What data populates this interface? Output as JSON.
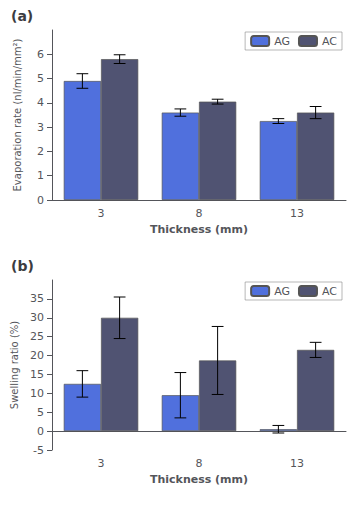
{
  "chart_data": [
    {
      "type": "bar",
      "title": "(a)",
      "categories": [
        "3",
        "8",
        "13"
      ],
      "series": [
        {
          "name": "AG",
          "values": [
            4.9,
            3.6,
            3.25
          ],
          "errors": [
            0.3,
            0.15,
            0.1
          ]
        },
        {
          "name": "AC",
          "values": [
            5.8,
            4.05,
            3.6
          ],
          "errors": [
            0.18,
            0.1,
            0.25
          ]
        }
      ],
      "xlabel": "Thickness (mm)",
      "ylabel": "Evaporation rate (nl/min/mm²)",
      "ylim": [
        0,
        7
      ],
      "yticks": [
        0,
        1,
        2,
        3,
        4,
        5,
        6
      ],
      "grid": false,
      "legend": "upper right"
    },
    {
      "type": "bar",
      "title": "(b)",
      "categories": [
        "3",
        "8",
        "13"
      ],
      "series": [
        {
          "name": "AG",
          "values": [
            12.5,
            9.5,
            0.5
          ],
          "errors": [
            3.5,
            6.0,
            1.0
          ]
        },
        {
          "name": "AC",
          "values": [
            30.0,
            18.7,
            21.5
          ],
          "errors": [
            5.5,
            9.0,
            2.0
          ]
        }
      ],
      "xlabel": "Thickness (mm)",
      "ylabel": "Swelling ratio (%)",
      "ylim": [
        -5,
        40
      ],
      "yticks": [
        -5,
        0,
        5,
        10,
        15,
        20,
        25,
        30,
        35
      ],
      "grid": false,
      "legend": "upper right"
    }
  ]
}
